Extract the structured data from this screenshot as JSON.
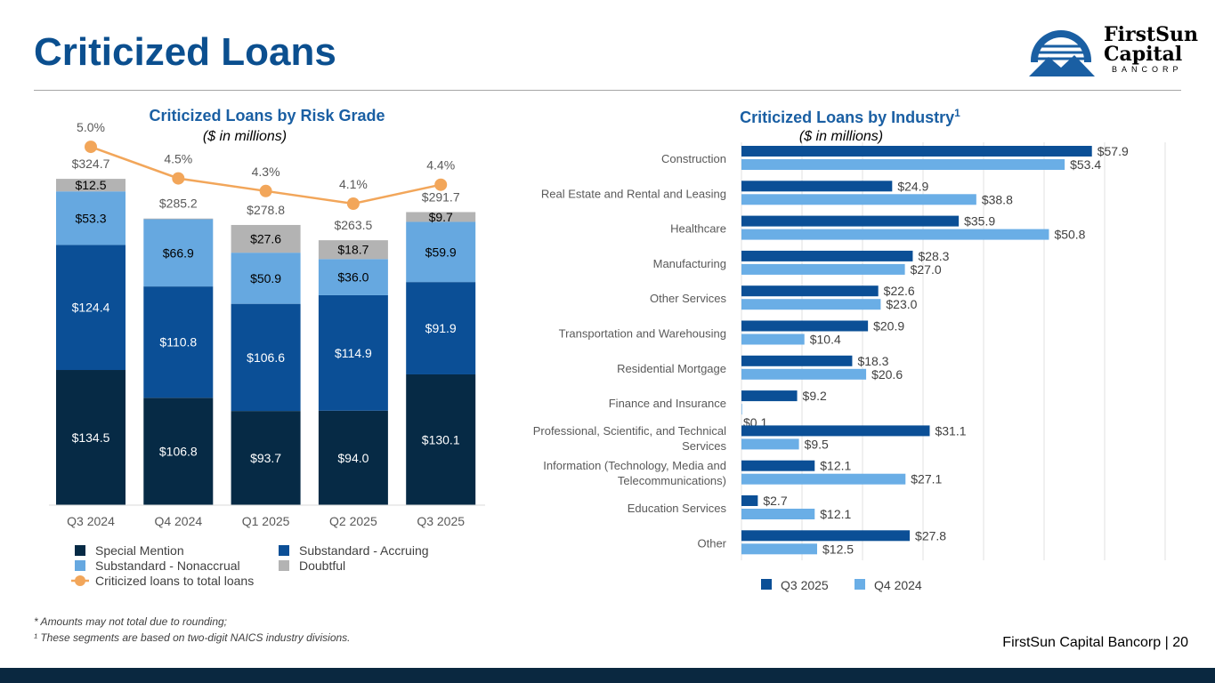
{
  "title": "Criticized Loans",
  "logo": {
    "line1": "FirstSun",
    "line2": "Capital",
    "line3": "BANCORP"
  },
  "footer": {
    "note1": "* Amounts may not total due to rounding;",
    "note2": "¹ These segments are based on two-digit NAICS industry divisions.",
    "page": "FirstSun Capital Bancorp  |  20"
  },
  "colors": {
    "special": "#062a45",
    "accruing": "#0b4f96",
    "nonaccrual": "#66a8e0",
    "doubtful": "#b3b3b3",
    "line": "#f2a65a",
    "q3": "#0b4f96",
    "q4": "#6aaee6"
  },
  "chart_data": [
    {
      "type": "bar",
      "stacked": true,
      "title": "Criticized Loans by Risk Grade",
      "subtitle": "($ in millions)",
      "categories": [
        "Q3 2024",
        "Q4 2024",
        "Q1 2025",
        "Q2 2025",
        "Q3 2025"
      ],
      "series": [
        {
          "name": "Special Mention",
          "values": [
            134.5,
            106.8,
            93.7,
            94.0,
            130.1
          ],
          "labels": [
            "$134.5",
            "$106.8",
            "$93.7",
            "$94.0",
            "$130.1"
          ]
        },
        {
          "name": "Substandard - Accruing",
          "values": [
            124.4,
            110.8,
            106.6,
            114.9,
            91.9
          ],
          "labels": [
            "$124.4",
            "$110.8",
            "$106.6",
            "$114.9",
            "$91.9"
          ]
        },
        {
          "name": "Substandard - Nonaccrual",
          "values": [
            53.3,
            66.9,
            50.9,
            36.0,
            59.9
          ],
          "labels": [
            "$53.3",
            "$66.9",
            "$50.9",
            "$36.0",
            "$59.9"
          ]
        },
        {
          "name": "Doubtful",
          "values": [
            12.5,
            0.7,
            27.6,
            18.7,
            9.7
          ],
          "labels": [
            "$12.5",
            "",
            "$27.6",
            "$18.7",
            "$9.7"
          ]
        }
      ],
      "totals": [
        "$324.7",
        "$285.2",
        "$278.8",
        "$263.5",
        "$291.7"
      ],
      "line": {
        "name": "Criticized loans to total loans",
        "values": [
          5.0,
          4.5,
          4.3,
          4.1,
          4.4
        ],
        "labels": [
          "5.0%",
          "4.5%",
          "4.3%",
          "4.1%",
          "4.4%"
        ]
      },
      "legend": "bottom"
    },
    {
      "type": "bar",
      "orientation": "horizontal",
      "title": "Criticized Loans by Industry",
      "title_sup": "1",
      "subtitle": "($ in millions)",
      "categories": [
        "Construction",
        "Real Estate and Rental and Leasing",
        "Healthcare",
        "Manufacturing",
        "Other Services",
        "Transportation and Warehousing",
        "Residential Mortgage",
        "Finance and Insurance",
        "Professional, Scientific, and Technical Services",
        "Information (Technology, Media and Telecommunications)",
        "Education Services",
        "Other"
      ],
      "series": [
        {
          "name": "Q3 2025",
          "values": [
            57.9,
            24.9,
            35.9,
            28.3,
            22.6,
            20.9,
            18.3,
            9.2,
            31.1,
            12.1,
            2.7,
            27.8
          ]
        },
        {
          "name": "Q4 2024",
          "values": [
            53.4,
            38.8,
            50.8,
            27.0,
            23.0,
            10.4,
            20.6,
            0.1,
            9.5,
            27.1,
            12.1,
            12.5
          ]
        }
      ],
      "xlim": [
        0,
        70
      ],
      "grid": true,
      "legend": "bottom"
    }
  ]
}
